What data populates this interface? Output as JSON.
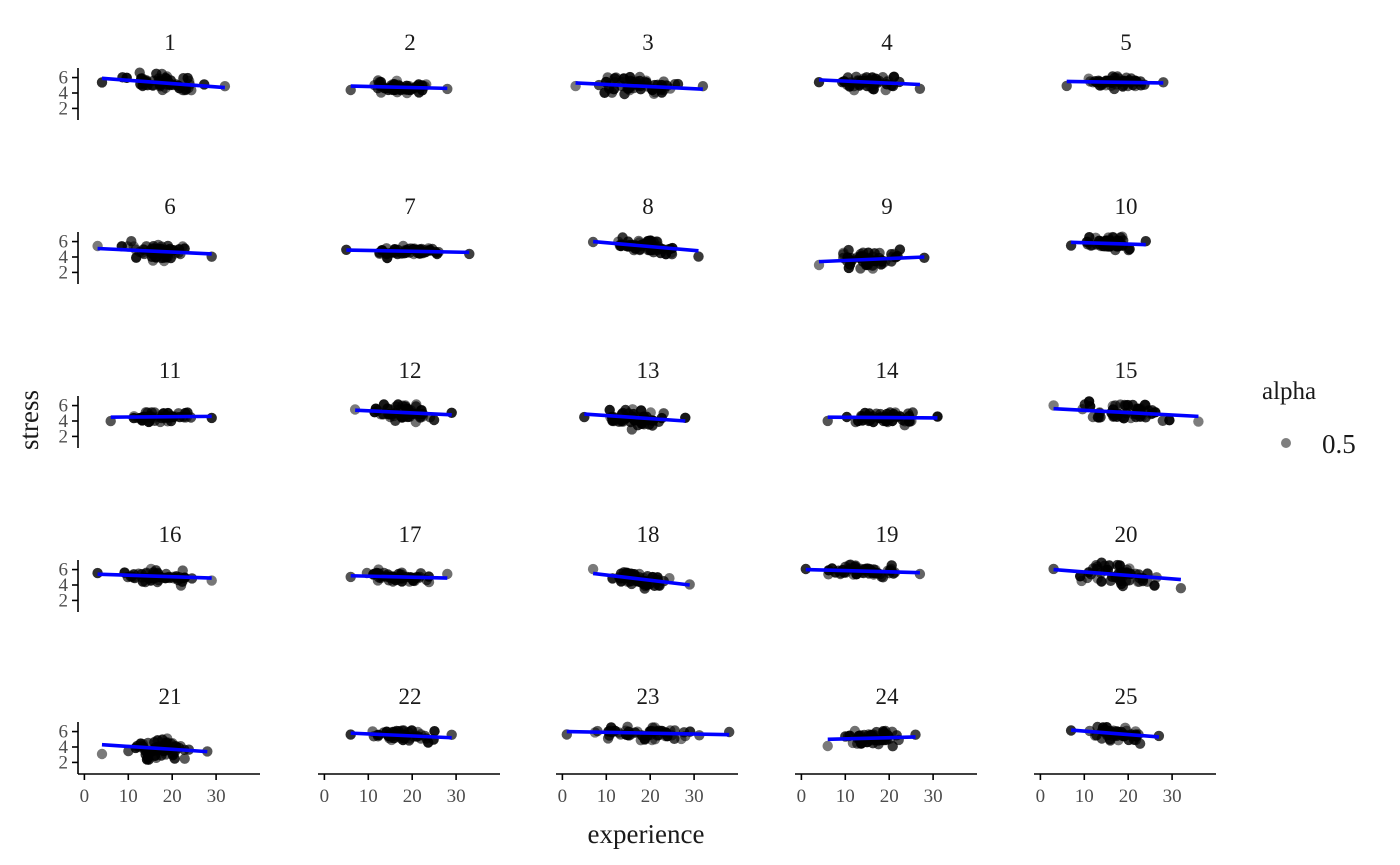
{
  "chart_data": {
    "type": "scatter",
    "title": "",
    "xlabel": "experience",
    "ylabel": "stress",
    "x_ticks": [
      0,
      10,
      20,
      30
    ],
    "y_ticks": [
      2,
      4,
      6
    ],
    "xlim": [
      -1,
      40
    ],
    "ylim": [
      0.5,
      7.5
    ],
    "grid": false,
    "point_color": "#000000",
    "line_color": "#0000ff",
    "legend": {
      "title": "alpha",
      "label": "0.5",
      "position": "right"
    },
    "panels": [
      {
        "label": "1",
        "x_range": [
          4,
          32
        ],
        "fit": [
          5.9,
          4.7
        ],
        "spread": 0.8,
        "seed": 11
      },
      {
        "label": "2",
        "x_range": [
          6,
          28
        ],
        "fit": [
          4.9,
          4.6
        ],
        "spread": 0.5,
        "seed": 12
      },
      {
        "label": "3",
        "x_range": [
          3,
          32
        ],
        "fit": [
          5.3,
          4.5
        ],
        "spread": 0.9,
        "seed": 13
      },
      {
        "label": "4",
        "x_range": [
          4,
          27
        ],
        "fit": [
          5.7,
          5.1
        ],
        "spread": 0.7,
        "seed": 14
      },
      {
        "label": "5",
        "x_range": [
          6,
          28
        ],
        "fit": [
          5.5,
          5.3
        ],
        "spread": 0.5,
        "seed": 15
      },
      {
        "label": "6",
        "x_range": [
          3,
          29
        ],
        "fit": [
          5.1,
          4.4
        ],
        "spread": 0.9,
        "seed": 16
      },
      {
        "label": "7",
        "x_range": [
          5,
          33
        ],
        "fit": [
          4.9,
          4.6
        ],
        "spread": 0.4,
        "seed": 17
      },
      {
        "label": "8",
        "x_range": [
          7,
          31
        ],
        "fit": [
          6.0,
          4.8
        ],
        "spread": 0.6,
        "seed": 18
      },
      {
        "label": "9",
        "x_range": [
          4,
          28
        ],
        "fit": [
          3.4,
          4.0
        ],
        "spread": 1.1,
        "seed": 19
      },
      {
        "label": "10",
        "x_range": [
          7,
          24
        ],
        "fit": [
          5.9,
          5.6
        ],
        "spread": 0.5,
        "seed": 20
      },
      {
        "label": "11",
        "x_range": [
          6,
          29
        ],
        "fit": [
          4.5,
          4.6
        ],
        "spread": 0.5,
        "seed": 21
      },
      {
        "label": "12",
        "x_range": [
          7,
          29
        ],
        "fit": [
          5.4,
          4.8
        ],
        "spread": 0.9,
        "seed": 22
      },
      {
        "label": "13",
        "x_range": [
          5,
          28
        ],
        "fit": [
          4.9,
          4.0
        ],
        "spread": 0.9,
        "seed": 23
      },
      {
        "label": "14",
        "x_range": [
          6,
          31
        ],
        "fit": [
          4.5,
          4.4
        ],
        "spread": 0.6,
        "seed": 24
      },
      {
        "label": "15",
        "x_range": [
          3,
          36
        ],
        "fit": [
          5.6,
          4.6
        ],
        "spread": 0.9,
        "seed": 25
      },
      {
        "label": "16",
        "x_range": [
          3,
          29
        ],
        "fit": [
          5.4,
          4.9
        ],
        "spread": 0.7,
        "seed": 26
      },
      {
        "label": "17",
        "x_range": [
          6,
          28
        ],
        "fit": [
          5.2,
          4.9
        ],
        "spread": 0.5,
        "seed": 27
      },
      {
        "label": "18",
        "x_range": [
          7,
          29
        ],
        "fit": [
          5.5,
          4.0
        ],
        "spread": 0.8,
        "seed": 28
      },
      {
        "label": "19",
        "x_range": [
          1,
          27
        ],
        "fit": [
          6.0,
          5.6
        ],
        "spread": 0.6,
        "seed": 29
      },
      {
        "label": "20",
        "x_range": [
          3,
          32
        ],
        "fit": [
          6.0,
          4.7
        ],
        "spread": 1.0,
        "seed": 30
      },
      {
        "label": "21",
        "x_range": [
          4,
          28
        ],
        "fit": [
          4.3,
          3.4
        ],
        "spread": 1.0,
        "seed": 31
      },
      {
        "label": "22",
        "x_range": [
          6,
          29
        ],
        "fit": [
          5.8,
          5.2
        ],
        "spread": 0.5,
        "seed": 32
      },
      {
        "label": "23",
        "x_range": [
          1,
          38
        ],
        "fit": [
          6.0,
          5.6
        ],
        "spread": 0.8,
        "seed": 33
      },
      {
        "label": "24",
        "x_range": [
          6,
          26
        ],
        "fit": [
          5.0,
          5.3
        ],
        "spread": 0.8,
        "seed": 34
      },
      {
        "label": "25",
        "x_range": [
          7,
          27
        ],
        "fit": [
          6.2,
          5.3
        ],
        "spread": 0.6,
        "seed": 35
      }
    ]
  }
}
